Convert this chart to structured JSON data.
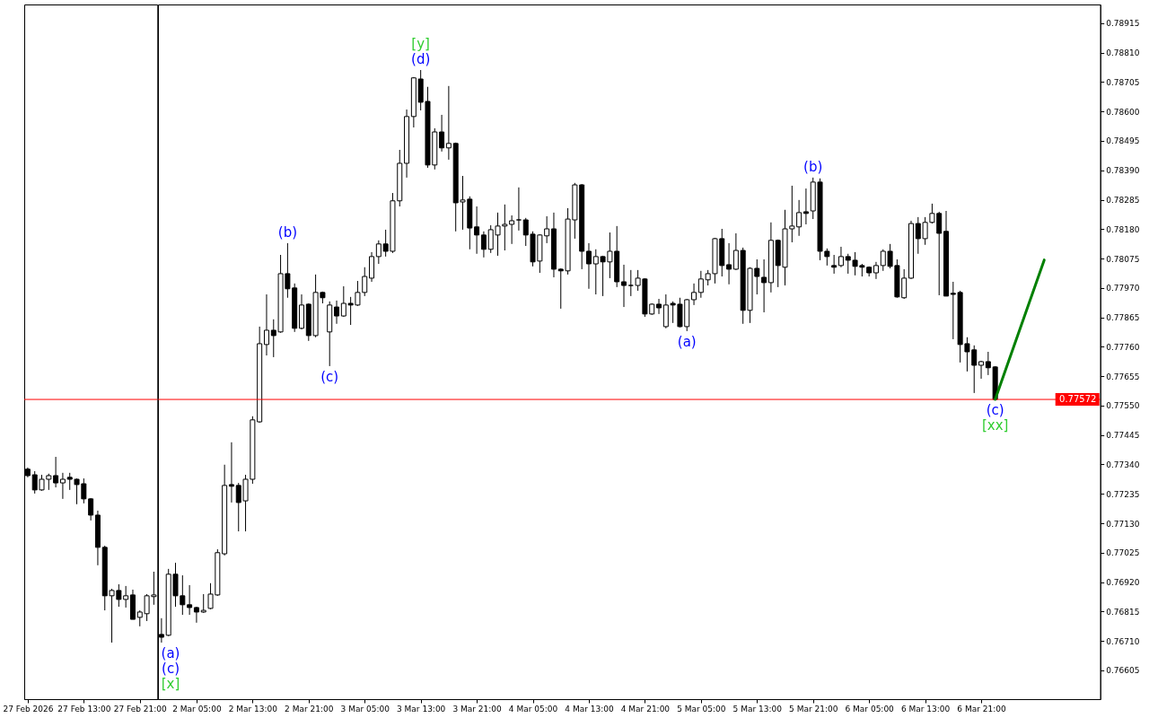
{
  "chart_data": [
    {
      "type": "candlestick",
      "x": [
        "2026-02-27T05:00",
        "2026-02-27T06:00",
        "2026-02-27T07:00",
        "2026-02-27T08:00",
        "2026-02-27T09:00",
        "2026-02-27T10:00",
        "2026-02-27T11:00",
        "2026-02-27T12:00",
        "2026-02-27T13:00",
        "2026-02-27T14:00",
        "2026-02-27T15:00",
        "2026-02-27T16:00",
        "2026-02-27T17:00",
        "2026-02-27T18:00",
        "2026-02-27T19:00",
        "2026-02-27T20:00",
        "2026-02-27T21:00",
        "2026-02-27T22:00",
        "2026-02-27T23:00"
      ],
      "ohlc": [
        [
          0.77323,
          0.77329,
          0.77294,
          0.773
        ],
        [
          0.77303,
          0.77316,
          0.77236,
          0.77249
        ],
        [
          0.77249,
          0.77303,
          0.77246,
          0.77287
        ],
        [
          0.77287,
          0.77307,
          0.77249,
          0.773
        ],
        [
          0.773,
          0.77367,
          0.77258,
          0.77274
        ],
        [
          0.77274,
          0.7731,
          0.77217,
          0.77287
        ],
        [
          0.77294,
          0.7731,
          0.77249,
          0.77287
        ],
        [
          0.77287,
          0.7729,
          0.77198,
          0.77268
        ],
        [
          0.77271,
          0.7729,
          0.77201,
          0.77217
        ],
        [
          0.77217,
          0.7722,
          0.7714,
          0.77159
        ],
        [
          0.77159,
          0.77175,
          0.7698,
          0.77044
        ],
        [
          0.77044,
          0.7705,
          0.76819,
          0.76871
        ],
        [
          0.76871,
          0.76896,
          0.76704,
          0.7689
        ],
        [
          0.7689,
          0.76912,
          0.76832,
          0.76858
        ],
        [
          0.76858,
          0.76906,
          0.76829,
          0.76871
        ],
        [
          0.76874,
          0.76893,
          0.76787,
          0.76787
        ],
        [
          0.76794,
          0.76819,
          0.76762,
          0.76813
        ],
        [
          0.76807,
          0.76877,
          0.76781,
          0.76871
        ],
        [
          0.76868,
          0.76957,
          0.76839,
          0.76874
        ]
      ],
      "colors": [
        "#000000",
        "#000000",
        "#ffffff",
        "#ffffff",
        "#000000",
        "#ffffff",
        "#000000",
        "#000000",
        "#000000",
        "#000000",
        "#000000",
        "#000000",
        "#ffffff",
        "#000000",
        "#ffffff",
        "#000000",
        "#ffffff",
        "#ffffff",
        "#ffffff"
      ],
      "ref_lines": [
        {
          "axis": "y",
          "value": 0.77572,
          "color": "#ff0000"
        }
      ],
      "xlim": [
        "2026-02-27T04:30",
        "2026-02-27T23:30"
      ],
      "xticks": [
        {
          "value": "2026-02-27T05:00",
          "label": "27 Feb 2026"
        },
        {
          "value": "2026-02-27T13:00",
          "label": "27 Feb 13:00"
        },
        {
          "value": "2026-02-27T21:00",
          "label": "27 Feb 21:00"
        }
      ],
      "ylim": [
        0.76502,
        0.78982
      ],
      "tick_labels": "x"
    },
    {
      "type": "candlestick",
      "x": [
        "2026-03-02T00:00",
        "2026-03-02T01:00",
        "2026-03-02T02:00",
        "2026-03-02T03:00",
        "2026-03-02T04:00",
        "2026-03-02T05:00",
        "2026-03-02T06:00",
        "2026-03-02T07:00",
        "2026-03-02T08:00",
        "2026-03-02T09:00",
        "2026-03-02T10:00",
        "2026-03-02T11:00",
        "2026-03-02T12:00",
        "2026-03-02T13:00",
        "2026-03-02T14:00",
        "2026-03-02T15:00",
        "2026-03-02T16:00",
        "2026-03-02T17:00",
        "2026-03-02T18:00",
        "2026-03-02T19:00",
        "2026-03-02T20:00",
        "2026-03-02T21:00",
        "2026-03-02T22:00",
        "2026-03-02T23:00",
        "2026-03-03T00:00",
        "2026-03-03T01:00",
        "2026-03-03T02:00",
        "2026-03-03T03:00",
        "2026-03-03T04:00",
        "2026-03-03T05:00",
        "2026-03-03T06:00",
        "2026-03-03T07:00",
        "2026-03-03T08:00",
        "2026-03-03T09:00",
        "2026-03-03T10:00",
        "2026-03-03T11:00",
        "2026-03-03T12:00",
        "2026-03-03T13:00",
        "2026-03-03T14:00",
        "2026-03-03T15:00",
        "2026-03-03T16:00",
        "2026-03-03T17:00",
        "2026-03-03T18:00",
        "2026-03-03T19:00",
        "2026-03-03T20:00",
        "2026-03-03T21:00",
        "2026-03-03T22:00",
        "2026-03-03T23:00",
        "2026-03-04T00:00",
        "2026-03-04T01:00",
        "2026-03-04T02:00",
        "2026-03-04T03:00",
        "2026-03-04T04:00",
        "2026-03-04T05:00",
        "2026-03-04T06:00",
        "2026-03-04T07:00",
        "2026-03-04T08:00",
        "2026-03-04T09:00",
        "2026-03-04T10:00",
        "2026-03-04T11:00",
        "2026-03-04T12:00",
        "2026-03-04T13:00",
        "2026-03-04T14:00",
        "2026-03-04T15:00",
        "2026-03-04T16:00",
        "2026-03-04T17:00",
        "2026-03-04T18:00",
        "2026-03-04T19:00",
        "2026-03-04T20:00",
        "2026-03-04T21:00",
        "2026-03-04T22:00",
        "2026-03-04T23:00",
        "2026-03-05T00:00",
        "2026-03-05T01:00",
        "2026-03-05T02:00",
        "2026-03-05T03:00",
        "2026-03-05T04:00",
        "2026-03-05T05:00",
        "2026-03-05T06:00",
        "2026-03-05T07:00",
        "2026-03-05T08:00",
        "2026-03-05T09:00",
        "2026-03-05T10:00",
        "2026-03-05T11:00",
        "2026-03-05T12:00",
        "2026-03-05T13:00",
        "2026-03-05T14:00",
        "2026-03-05T15:00",
        "2026-03-05T16:00",
        "2026-03-05T17:00",
        "2026-03-05T18:00",
        "2026-03-05T19:00",
        "2026-03-05T20:00",
        "2026-03-05T21:00",
        "2026-03-05T22:00",
        "2026-03-05T23:00",
        "2026-03-06T00:00",
        "2026-03-06T01:00",
        "2026-03-06T02:00",
        "2026-03-06T03:00",
        "2026-03-06T04:00",
        "2026-03-06T05:00",
        "2026-03-06T06:00",
        "2026-03-06T07:00",
        "2026-03-06T08:00",
        "2026-03-06T09:00",
        "2026-03-06T10:00",
        "2026-03-06T11:00",
        "2026-03-06T12:00",
        "2026-03-06T13:00",
        "2026-03-06T14:00",
        "2026-03-06T15:00",
        "2026-03-06T16:00",
        "2026-03-06T17:00",
        "2026-03-06T18:00",
        "2026-03-06T19:00",
        "2026-03-06T20:00",
        "2026-03-06T21:00",
        "2026-03-06T22:00",
        "2026-03-06T23:00"
      ],
      "ohlc": [
        [
          0.76733,
          0.76791,
          0.76704,
          0.76723
        ],
        [
          0.7673,
          0.76967,
          0.76727,
          0.76948
        ],
        [
          0.76948,
          0.76989,
          0.76832,
          0.76871
        ],
        [
          0.76871,
          0.76944,
          0.76803,
          0.76839
        ],
        [
          0.76839,
          0.76909,
          0.76803,
          0.76829
        ],
        [
          0.76829,
          0.76832,
          0.76775,
          0.76813
        ],
        [
          0.76813,
          0.76877,
          0.7681,
          0.76819
        ],
        [
          0.76826,
          0.76916,
          0.76823,
          0.76877
        ],
        [
          0.76874,
          0.77037,
          0.76871,
          0.77025
        ],
        [
          0.77021,
          0.77339,
          0.77015,
          0.77265
        ],
        [
          0.77268,
          0.77419,
          0.77204,
          0.77262
        ],
        [
          0.77265,
          0.77274,
          0.77101,
          0.77204
        ],
        [
          0.7721,
          0.77303,
          0.77101,
          0.77287
        ],
        [
          0.77287,
          0.77512,
          0.77271,
          0.77499
        ],
        [
          0.77492,
          0.77832,
          0.77489,
          0.77771
        ],
        [
          0.77768,
          0.77947,
          0.77729,
          0.77819
        ],
        [
          0.77819,
          0.77858,
          0.77723,
          0.778
        ],
        [
          0.77813,
          0.78088,
          0.7781,
          0.78021
        ],
        [
          0.78021,
          0.7813,
          0.77935,
          0.77967
        ],
        [
          0.7797,
          0.77986,
          0.77813,
          0.77826
        ],
        [
          0.77826,
          0.77947,
          0.77822,
          0.77909
        ],
        [
          0.77912,
          0.77915,
          0.77781,
          0.778
        ],
        [
          0.778,
          0.78018,
          0.77794,
          0.77954
        ],
        [
          0.77954,
          0.77957,
          0.77915,
          0.77935
        ],
        [
          0.77813,
          0.77922,
          0.77691,
          0.77909
        ],
        [
          0.77902,
          0.77925,
          0.77842,
          0.7787
        ],
        [
          0.7787,
          0.77976,
          0.77867,
          0.77915
        ],
        [
          0.77915,
          0.77938,
          0.77838,
          0.77909
        ],
        [
          0.77909,
          0.77995,
          0.77906,
          0.77954
        ],
        [
          0.77954,
          0.78044,
          0.77941,
          0.78011
        ],
        [
          0.78005,
          0.78098,
          0.77992,
          0.78082
        ],
        [
          0.78082,
          0.7814,
          0.78056,
          0.78127
        ],
        [
          0.78127,
          0.78178,
          0.78082,
          0.78101
        ],
        [
          0.78101,
          0.78309,
          0.78095,
          0.78281
        ],
        [
          0.78281,
          0.78463,
          0.78261,
          0.78415
        ],
        [
          0.78415,
          0.78607,
          0.78364,
          0.78582
        ],
        [
          0.78582,
          0.78723,
          0.78543,
          0.7872
        ],
        [
          0.78716,
          0.78748,
          0.78604,
          0.78633
        ],
        [
          0.78636,
          0.78688,
          0.78399,
          0.78409
        ],
        [
          0.78409,
          0.7854,
          0.78393,
          0.78527
        ],
        [
          0.78527,
          0.78588,
          0.78457,
          0.7847
        ],
        [
          0.7847,
          0.78691,
          0.78428,
          0.78486
        ],
        [
          0.78486,
          0.78489,
          0.78172,
          0.78274
        ],
        [
          0.78277,
          0.7837,
          0.78178,
          0.78284
        ],
        [
          0.78287,
          0.78297,
          0.78108,
          0.78184
        ],
        [
          0.78188,
          0.78261,
          0.78092,
          0.78159
        ],
        [
          0.78159,
          0.78172,
          0.78079,
          0.78108
        ],
        [
          0.78108,
          0.78194,
          0.78095,
          0.78178
        ],
        [
          0.78159,
          0.78239,
          0.78085,
          0.78191
        ],
        [
          0.78191,
          0.78268,
          0.78104,
          0.78197
        ],
        [
          0.78197,
          0.78229,
          0.78127,
          0.7821
        ],
        [
          0.78213,
          0.78329,
          0.78175,
          0.78213
        ],
        [
          0.78213,
          0.7822,
          0.7812,
          0.78159
        ],
        [
          0.78162,
          0.78172,
          0.78047,
          0.78063
        ],
        [
          0.78066,
          0.78162,
          0.78024,
          0.78159
        ],
        [
          0.78156,
          0.78226,
          0.7813,
          0.78181
        ],
        [
          0.78181,
          0.78239,
          0.78008,
          0.78037
        ],
        [
          0.78037,
          0.7804,
          0.77896,
          0.78031
        ],
        [
          0.78031,
          0.78255,
          0.78018,
          0.78216
        ],
        [
          0.78213,
          0.78345,
          0.78146,
          0.78338
        ],
        [
          0.78338,
          0.78341,
          0.78037,
          0.78101
        ],
        [
          0.78101,
          0.7813,
          0.77967,
          0.78056
        ],
        [
          0.78056,
          0.78108,
          0.77947,
          0.78082
        ],
        [
          0.78082,
          0.78085,
          0.77941,
          0.78063
        ],
        [
          0.78063,
          0.78168,
          0.78005,
          0.78101
        ],
        [
          0.78101,
          0.78191,
          0.77973,
          0.77992
        ],
        [
          0.77992,
          0.78053,
          0.77902,
          0.77979
        ],
        [
          0.77979,
          0.78034,
          0.77941,
          0.77979
        ],
        [
          0.77979,
          0.78034,
          0.7796,
          0.78005
        ],
        [
          0.78002,
          0.78005,
          0.77867,
          0.77877
        ],
        [
          0.77877,
          0.77915,
          0.77874,
          0.77912
        ],
        [
          0.77912,
          0.77931,
          0.77877,
          0.77899
        ],
        [
          0.77832,
          0.77947,
          0.77826,
          0.77909
        ],
        [
          0.77915,
          0.77922,
          0.77845,
          0.77909
        ],
        [
          0.77912,
          0.77935,
          0.77829,
          0.77832
        ],
        [
          0.77832,
          0.77931,
          0.77816,
          0.77928
        ],
        [
          0.77928,
          0.77986,
          0.77909,
          0.77954
        ],
        [
          0.77954,
          0.78031,
          0.77935,
          0.78002
        ],
        [
          0.77999,
          0.78034,
          0.77979,
          0.78021
        ],
        [
          0.78021,
          0.78149,
          0.77986,
          0.78146
        ],
        [
          0.78146,
          0.78181,
          0.78011,
          0.7805
        ],
        [
          0.78053,
          0.7813,
          0.77983,
          0.78037
        ],
        [
          0.78037,
          0.78165,
          0.78034,
          0.78104
        ],
        [
          0.78104,
          0.78114,
          0.77842,
          0.7789
        ],
        [
          0.7789,
          0.78044,
          0.77845,
          0.7804
        ],
        [
          0.7804,
          0.78072,
          0.77947,
          0.78011
        ],
        [
          0.78008,
          0.78072,
          0.77883,
          0.77989
        ],
        [
          0.77989,
          0.78204,
          0.77954,
          0.7814
        ],
        [
          0.7814,
          0.78143,
          0.77973,
          0.7805
        ],
        [
          0.78044,
          0.78249,
          0.77979,
          0.78181
        ],
        [
          0.78181,
          0.78335,
          0.78133,
          0.78191
        ],
        [
          0.78188,
          0.78284,
          0.78156,
          0.78239
        ],
        [
          0.78242,
          0.78325,
          0.78197,
          0.78236
        ],
        [
          0.78245,
          0.78364,
          0.78216,
          0.78348
        ],
        [
          0.78348,
          0.78361,
          0.78069,
          0.78101
        ],
        [
          0.78101,
          0.78111,
          0.7805,
          0.78082
        ],
        [
          0.7805,
          0.78088,
          0.78021,
          0.78044
        ],
        [
          0.7805,
          0.78117,
          0.78044,
          0.78082
        ],
        [
          0.78082,
          0.78092,
          0.78021,
          0.78069
        ],
        [
          0.78069,
          0.78098,
          0.78015,
          0.78047
        ],
        [
          0.7805,
          0.78056,
          0.78011,
          0.78044
        ],
        [
          0.78044,
          0.78047,
          0.78011,
          0.78024
        ],
        [
          0.78024,
          0.78063,
          0.78002,
          0.7805
        ],
        [
          0.7805,
          0.78108,
          0.78031,
          0.78101
        ],
        [
          0.78101,
          0.78127,
          0.7804,
          0.78047
        ],
        [
          0.7805,
          0.78072,
          0.77935,
          0.77938
        ],
        [
          0.77935,
          0.78037,
          0.77931,
          0.78005
        ],
        [
          0.78005,
          0.7821,
          0.78002,
          0.782
        ],
        [
          0.782,
          0.78223,
          0.78092,
          0.78146
        ],
        [
          0.78146,
          0.78223,
          0.78124,
          0.78204
        ],
        [
          0.78204,
          0.78271,
          0.782,
          0.78236
        ],
        [
          0.78236,
          0.78242,
          0.77944,
          0.78165
        ],
        [
          0.78172,
          0.78245,
          0.77941,
          0.77941
        ],
        [
          0.77951,
          0.77992,
          0.77787,
          0.77947
        ],
        [
          0.77954,
          0.7796,
          0.77704,
          0.77768
        ],
        [
          0.77771,
          0.77794,
          0.77672,
          0.77742
        ],
        [
          0.77749,
          0.77765,
          0.77595,
          0.77694
        ],
        [
          0.77694,
          0.7771,
          0.77646,
          0.77707
        ],
        [
          0.77707,
          0.77742,
          0.77659,
          0.77685
        ],
        [
          0.77688,
          0.77691,
          0.77572,
          0.77572
        ]
      ],
      "colors": [
        "#000000",
        "#ffffff",
        "#000000",
        "#000000",
        "#000000",
        "#000000",
        "#ffffff",
        "#ffffff",
        "#ffffff",
        "#ffffff",
        "#000000",
        "#000000",
        "#ffffff",
        "#ffffff",
        "#ffffff",
        "#ffffff",
        "#000000",
        "#ffffff",
        "#000000",
        "#000000",
        "#ffffff",
        "#000000",
        "#ffffff",
        "#000000",
        "#ffffff",
        "#000000",
        "#ffffff",
        "#000000",
        "#ffffff",
        "#ffffff",
        "#ffffff",
        "#ffffff",
        "#000000",
        "#ffffff",
        "#ffffff",
        "#ffffff",
        "#ffffff",
        "#000000",
        "#000000",
        "#ffffff",
        "#000000",
        "#ffffff",
        "#000000",
        "#ffffff",
        "#000000",
        "#000000",
        "#000000",
        "#ffffff",
        "#ffffff",
        "#ffffff",
        "#ffffff",
        "#000000",
        "#000000",
        "#000000",
        "#ffffff",
        "#ffffff",
        "#000000",
        "#000000",
        "#ffffff",
        "#ffffff",
        "#000000",
        "#000000",
        "#ffffff",
        "#000000",
        "#ffffff",
        "#000000",
        "#000000",
        "#000000",
        "#ffffff",
        "#000000",
        "#ffffff",
        "#000000",
        "#ffffff",
        "#000000",
        "#000000",
        "#ffffff",
        "#ffffff",
        "#ffffff",
        "#ffffff",
        "#ffffff",
        "#000000",
        "#000000",
        "#ffffff",
        "#000000",
        "#ffffff",
        "#000000",
        "#000000",
        "#ffffff",
        "#000000",
        "#ffffff",
        "#ffffff",
        "#ffffff",
        "#000000",
        "#ffffff",
        "#000000",
        "#000000",
        "#000000",
        "#ffffff",
        "#000000",
        "#000000",
        "#000000",
        "#000000",
        "#ffffff",
        "#ffffff",
        "#000000",
        "#000000",
        "#ffffff",
        "#ffffff",
        "#000000",
        "#ffffff",
        "#ffffff",
        "#000000",
        "#000000",
        "#000000",
        "#000000",
        "#000000",
        "#000000",
        "#ffffff",
        "#000000",
        "#000000"
      ],
      "series": [
        {
          "type": "line",
          "color": "#008000",
          "x": [
            "2026-03-06T23:00",
            "2026-03-07T06:00"
          ],
          "values": [
            0.77572,
            0.7807
          ]
        }
      ],
      "annotations": [
        {
          "text": "(a)",
          "x": "2026-03-02T00:00",
          "y": 0.76704
        },
        {
          "text": "(c)",
          "x": "2026-03-02T00:00",
          "y": 0.76704
        },
        {
          "text": "[x]",
          "x": "2026-03-02T00:00",
          "y": 0.76704
        },
        {
          "text": "(b)",
          "x": "2026-03-02T18:00",
          "y": 0.7813
        },
        {
          "text": "(c)",
          "x": "2026-03-03T00:00",
          "y": 0.77691
        },
        {
          "text": "(d)",
          "x": "2026-03-03T13:00",
          "y": 0.78748
        },
        {
          "text": "[y]",
          "x": "2026-03-03T13:00",
          "y": 0.78748
        },
        {
          "text": "(a)",
          "x": "2026-03-05T03:00",
          "y": 0.77816
        },
        {
          "text": "(b)",
          "x": "2026-03-05T21:00",
          "y": 0.78364
        },
        {
          "text": "(c)",
          "x": "2026-03-06T23:00",
          "y": 0.77572
        },
        {
          "text": "[xx]",
          "x": "2026-03-06T23:00",
          "y": 0.77572
        }
      ],
      "ref_lines": [
        {
          "axis": "y",
          "value": 0.77572,
          "label": "0.77572",
          "color": "#ff0000"
        }
      ],
      "xlim": [
        "2026-03-01T23:30",
        "2026-03-07T14:00"
      ],
      "xticks": [
        {
          "value": "2026-03-02T05:00",
          "label": "2 Mar 05:00"
        },
        {
          "value": "2026-03-02T13:00",
          "label": "2 Mar 13:00"
        },
        {
          "value": "2026-03-02T21:00",
          "label": "2 Mar 21:00"
        },
        {
          "value": "2026-03-03T05:00",
          "label": "3 Mar 05:00"
        },
        {
          "value": "2026-03-03T13:00",
          "label": "3 Mar 13:00"
        },
        {
          "value": "2026-03-03T21:00",
          "label": "3 Mar 21:00"
        },
        {
          "value": "2026-03-04T05:00",
          "label": "4 Mar 05:00"
        },
        {
          "value": "2026-03-04T13:00",
          "label": "4 Mar 13:00"
        },
        {
          "value": "2026-03-04T21:00",
          "label": "4 Mar 21:00"
        },
        {
          "value": "2026-03-05T05:00",
          "label": "5 Mar 05:00"
        },
        {
          "value": "2026-03-05T13:00",
          "label": "5 Mar 13:00"
        },
        {
          "value": "2026-03-05T21:00",
          "label": "5 Mar 21:00"
        },
        {
          "value": "2026-03-06T05:00",
          "label": "6 Mar 05:00"
        },
        {
          "value": "2026-03-06T13:00",
          "label": "6 Mar 13:00"
        },
        {
          "value": "2026-03-06T21:00",
          "label": "6 Mar 21:00"
        }
      ],
      "ylim": [
        0.76502,
        0.78982
      ],
      "yticks": [
        0.76605,
        {
          "value": 0.7671,
          "label": "0.76710"
        },
        0.76815,
        {
          "value": 0.7692,
          "label": "0.76920"
        },
        0.77025,
        {
          "value": 0.7713,
          "label": "0.77130"
        },
        0.77235,
        {
          "value": 0.7734,
          "label": "0.77340"
        },
        0.77445,
        {
          "value": 0.7755,
          "label": "0.77550"
        },
        0.77655,
        {
          "value": 0.7776,
          "label": "0.77760"
        },
        0.77865,
        {
          "value": 0.7797,
          "label": "0.77970"
        },
        0.78075,
        {
          "value": 0.7818,
          "label": "0.78180"
        },
        0.78285,
        {
          "value": 0.7839,
          "label": "0.78390"
        },
        0.78495,
        {
          "value": 0.786,
          "label": "0.78600"
        },
        0.78705,
        {
          "value": 0.7881,
          "label": "0.78810"
        },
        0.78915
      ]
    }
  ]
}
